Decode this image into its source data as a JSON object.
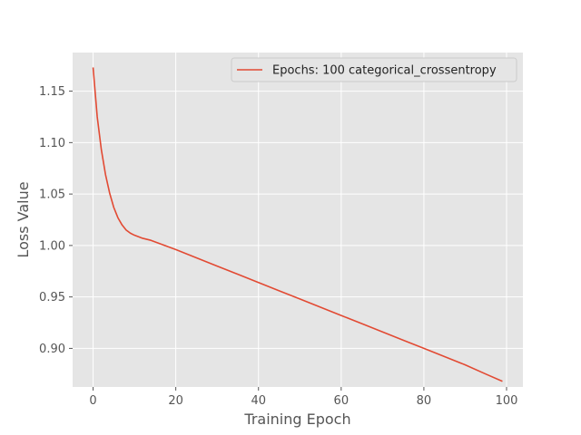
{
  "chart_data": {
    "type": "line",
    "title": "",
    "xlabel": "Training Epoch",
    "ylabel": "Loss Value",
    "xlim": [
      -4.95,
      103.95
    ],
    "ylim": [
      0.8625,
      1.1875
    ],
    "xticks": [
      0,
      20,
      40,
      60,
      80,
      100
    ],
    "yticks": [
      0.9,
      0.95,
      1.0,
      1.05,
      1.1,
      1.15
    ],
    "xtick_labels": [
      "0",
      "20",
      "40",
      "60",
      "80",
      "100"
    ],
    "ytick_labels": [
      "0.90",
      "0.95",
      "1.00",
      "1.05",
      "1.10",
      "1.15"
    ],
    "grid": true,
    "legend_position": "top-right",
    "series": [
      {
        "name": "Epochs: 100 categorical_crossentropy",
        "color": "#E24A33",
        "x": [
          0,
          1,
          2,
          3,
          4,
          5,
          6,
          7,
          8,
          9,
          10,
          12,
          14,
          16,
          18,
          20,
          25,
          30,
          35,
          40,
          45,
          50,
          55,
          60,
          65,
          70,
          75,
          80,
          85,
          90,
          95,
          99
        ],
        "y": [
          1.173,
          1.125,
          1.093,
          1.069,
          1.051,
          1.037,
          1.027,
          1.02,
          1.015,
          1.012,
          1.01,
          1.007,
          1.005,
          1.002,
          0.999,
          0.996,
          0.988,
          0.98,
          0.972,
          0.964,
          0.956,
          0.948,
          0.94,
          0.932,
          0.924,
          0.916,
          0.908,
          0.9,
          0.892,
          0.884,
          0.875,
          0.868
        ]
      }
    ]
  },
  "colors": {
    "plot_background": "#E5E5E5",
    "grid": "#FFFFFF",
    "text": "#555555"
  }
}
